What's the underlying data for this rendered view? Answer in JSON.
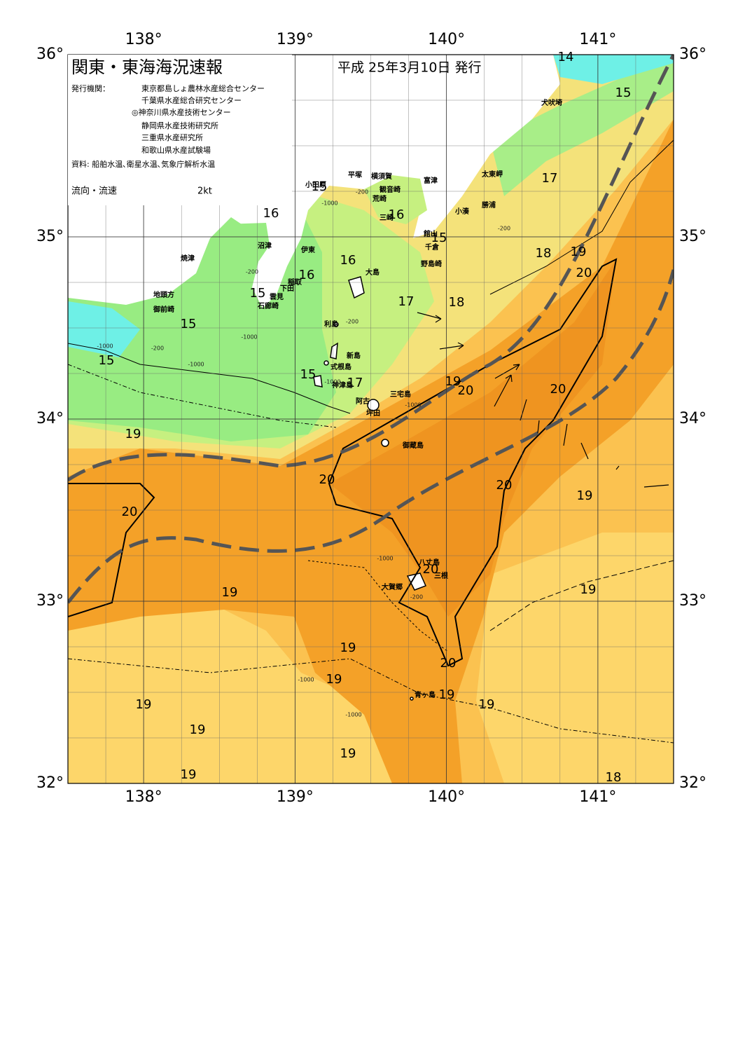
{
  "header": {
    "title": "関東・東海海況速報",
    "date": "平成 25年3月10日 発行"
  },
  "agencies": {
    "label": "発行機関：",
    "items": [
      "東京都島しょ農林水産総合センター",
      "千葉県水産総合研究センター",
      "◎神奈川県水産技術センター",
      "静岡県水産技術研究所",
      "三重県水産研究所",
      "和歌山県水産試験場"
    ]
  },
  "source": "資料: 船舶水温､衛星水温､気象庁解析水温",
  "legend": {
    "label": "流向・流速",
    "scale": "2kt"
  },
  "axes": {
    "lon_ticks": [
      {
        "value": 138,
        "label": "138°"
      },
      {
        "value": 139,
        "label": "139°"
      },
      {
        "value": 140,
        "label": "140°"
      },
      {
        "value": 141,
        "label": "141°"
      }
    ],
    "lat_ticks": [
      {
        "value": 36,
        "label": "36°"
      },
      {
        "value": 35,
        "label": "35°"
      },
      {
        "value": 34,
        "label": "34°"
      },
      {
        "value": 33,
        "label": "33°"
      },
      {
        "value": 32,
        "label": "32°"
      }
    ]
  },
  "places": [
    "小田原",
    "平塚",
    "横須賀",
    "観音崎",
    "荒崎",
    "三崎",
    "富津",
    "太東岬",
    "勝浦",
    "小湊",
    "館山",
    "千倉",
    "野島崎",
    "犬吠埼",
    "沼津",
    "焼津",
    "伊東",
    "稲取",
    "下田",
    "雲見",
    "石廊崎",
    "地頭方",
    "御前崎",
    "大島",
    "利島",
    "新島",
    "式根島",
    "神津島",
    "三宅島",
    "阿古",
    "坪田",
    "御蔵島",
    "八丈島",
    "三根",
    "大賀郷",
    "青ヶ島"
  ],
  "isotherm_labels": [
    14,
    15,
    17,
    16,
    15,
    16,
    15,
    18,
    19,
    20,
    16,
    16,
    15,
    17,
    18,
    15,
    15,
    15,
    17,
    19,
    20,
    20,
    19,
    20,
    20,
    19,
    20,
    20,
    19,
    19,
    19,
    20,
    19,
    19,
    19,
    19,
    19,
    19,
    19,
    18
  ],
  "depth_labels": [
    -200,
    -1000,
    -200,
    -200,
    -1000,
    -200,
    -1000,
    -1000,
    -200,
    -1000,
    -1000,
    -1000,
    -200,
    -1000,
    -1000
  ]
}
